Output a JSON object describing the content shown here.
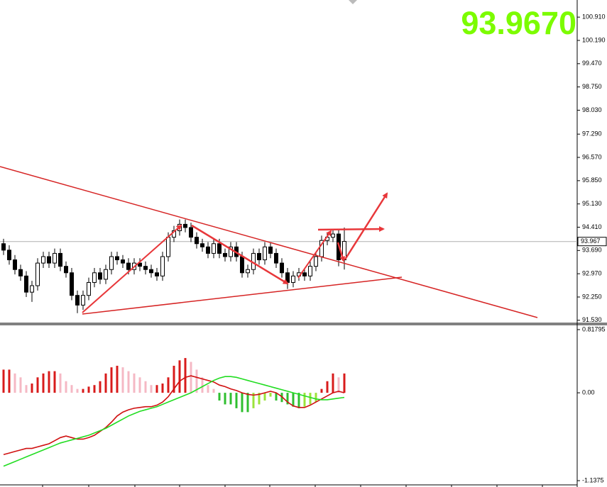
{
  "chart_data": [
    {
      "type": "candlestick",
      "headline": {
        "value": 93.967,
        "label": "93.9670"
      },
      "headline_color": "#7cfc00",
      "current_price": {
        "value": 93.967,
        "label": "93.967"
      },
      "open": [
        93.9,
        93.7,
        93.4,
        93.1,
        92.9,
        92.4,
        92.6,
        93.3,
        93.5,
        93.3,
        93.6,
        93.2,
        93.0,
        92.3,
        92.0,
        92.3,
        92.7,
        93.0,
        92.8,
        93.1,
        93.5,
        93.4,
        93.3,
        93.1,
        93.3,
        93.2,
        93.1,
        93.0,
        92.9,
        93.5,
        94.1,
        94.3,
        94.5,
        94.4,
        94.1,
        93.9,
        93.8,
        93.6,
        93.9,
        93.6,
        93.5,
        93.8,
        93.5,
        93.0,
        93.1,
        93.6,
        93.4,
        93.8,
        93.6,
        93.3,
        93.0,
        92.7,
        92.9,
        93.0,
        92.9,
        93.2,
        93.5,
        94.0,
        94.1,
        94.2,
        93.4
      ],
      "high": [
        94.05,
        93.85,
        93.55,
        93.25,
        93.05,
        92.75,
        93.45,
        93.65,
        93.65,
        93.75,
        93.75,
        93.35,
        93.15,
        92.45,
        92.45,
        92.85,
        93.15,
        93.15,
        93.25,
        93.65,
        93.65,
        93.55,
        93.45,
        93.45,
        93.45,
        93.35,
        93.25,
        93.15,
        93.65,
        94.25,
        94.45,
        94.65,
        94.65,
        94.55,
        94.25,
        94.05,
        93.95,
        94.05,
        94.05,
        93.75,
        93.95,
        93.95,
        93.65,
        93.25,
        93.75,
        93.75,
        93.95,
        93.95,
        93.75,
        93.45,
        93.15,
        93.05,
        93.15,
        93.15,
        93.35,
        93.65,
        94.15,
        94.25,
        94.35,
        94.35,
        94.4
      ],
      "low": [
        93.55,
        93.25,
        92.95,
        92.75,
        92.25,
        92.1,
        92.45,
        93.15,
        93.15,
        93.15,
        93.05,
        92.85,
        92.15,
        91.75,
        91.85,
        92.15,
        92.55,
        92.65,
        92.65,
        92.95,
        93.25,
        93.15,
        92.95,
        92.95,
        93.05,
        92.95,
        92.85,
        92.75,
        92.75,
        93.35,
        93.95,
        94.15,
        94.25,
        93.95,
        93.75,
        93.65,
        93.45,
        93.45,
        93.45,
        93.35,
        93.35,
        93.35,
        92.85,
        92.85,
        92.95,
        93.25,
        93.25,
        93.45,
        93.15,
        92.85,
        92.5,
        92.55,
        92.75,
        92.75,
        92.75,
        93.05,
        93.35,
        93.85,
        93.95,
        93.2,
        93.1
      ],
      "close": [
        93.7,
        93.4,
        93.1,
        92.9,
        92.4,
        92.6,
        93.3,
        93.5,
        93.3,
        93.6,
        93.2,
        93.0,
        92.3,
        92.0,
        92.3,
        92.7,
        93.0,
        92.8,
        93.1,
        93.5,
        93.4,
        93.3,
        93.1,
        93.3,
        93.2,
        93.1,
        93.0,
        92.9,
        93.5,
        94.1,
        94.3,
        94.5,
        94.4,
        94.1,
        93.9,
        93.8,
        93.6,
        93.9,
        93.6,
        93.5,
        93.8,
        93.5,
        93.0,
        93.1,
        93.6,
        93.4,
        93.8,
        93.6,
        93.3,
        93.0,
        92.7,
        92.9,
        93.0,
        92.9,
        93.2,
        93.5,
        94.0,
        94.1,
        94.2,
        93.4,
        93.97
      ],
      "ylim": [
        91.46,
        101.44
      ],
      "yticks": [
        {
          "value": 100.91,
          "label": "100.910"
        },
        {
          "value": 100.19,
          "label": "100.190"
        },
        {
          "value": 99.47,
          "label": "99.470"
        },
        {
          "value": 98.75,
          "label": "98.750"
        },
        {
          "value": 98.03,
          "label": "98.030"
        },
        {
          "value": 97.29,
          "label": "97.290"
        },
        {
          "value": 96.57,
          "label": "96.570"
        },
        {
          "value": 95.85,
          "label": "95.850"
        },
        {
          "value": 95.13,
          "label": "95.130"
        },
        {
          "value": 94.41,
          "label": "94.410"
        },
        {
          "value": 93.69,
          "label": "93.690"
        },
        {
          "value": 92.97,
          "label": "92.970"
        },
        {
          "value": 92.25,
          "label": "92.250"
        },
        {
          "value": 91.53,
          "label": "91.530"
        }
      ]
    },
    {
      "type": "indicator",
      "series": [
        {
          "type": "histogram",
          "color": "#d81b1b",
          "fade_color": "#f5b8c4",
          "neg_color": "#2fbf2f",
          "neg_fade_color": "#9be33a",
          "values": [
            0.3,
            0.3,
            0.25,
            0.2,
            0.1,
            0.12,
            0.2,
            0.25,
            0.28,
            0.28,
            0.25,
            0.15,
            0.1,
            0.05,
            0.05,
            0.08,
            0.1,
            0.15,
            0.25,
            0.33,
            0.35,
            0.33,
            0.28,
            0.25,
            0.2,
            0.15,
            0.1,
            0.1,
            0.12,
            0.2,
            0.35,
            0.42,
            0.45,
            0.4,
            0.3,
            0.2,
            0.1,
            0.05,
            -0.1,
            -0.15,
            -0.15,
            -0.2,
            -0.25,
            -0.25,
            -0.2,
            -0.15,
            -0.1,
            -0.05,
            -0.1,
            -0.12,
            -0.15,
            -0.18,
            -0.2,
            -0.18,
            -0.15,
            -0.12,
            0.05,
            0.15,
            0.25,
            0.2,
            0.25
          ]
        },
        {
          "type": "line",
          "color": "#d01010",
          "values": [
            -0.8,
            -0.78,
            -0.76,
            -0.74,
            -0.72,
            -0.72,
            -0.7,
            -0.68,
            -0.66,
            -0.62,
            -0.58,
            -0.56,
            -0.58,
            -0.6,
            -0.6,
            -0.58,
            -0.55,
            -0.5,
            -0.45,
            -0.38,
            -0.3,
            -0.25,
            -0.22,
            -0.2,
            -0.19,
            -0.18,
            -0.18,
            -0.16,
            -0.12,
            -0.05,
            0.05,
            0.15,
            0.2,
            0.22,
            0.2,
            0.18,
            0.16,
            0.14,
            0.1,
            0.08,
            0.05,
            0.03,
            0.0,
            -0.02,
            -0.03,
            -0.02,
            0.0,
            0.02,
            0.0,
            -0.05,
            -0.12,
            -0.17,
            -0.19,
            -0.19,
            -0.16,
            -0.12,
            -0.08,
            -0.04,
            0.0,
            0.02,
            0.0
          ]
        },
        {
          "type": "line",
          "color": "#22dd22",
          "values": [
            -0.95,
            -0.92,
            -0.89,
            -0.86,
            -0.83,
            -0.8,
            -0.77,
            -0.74,
            -0.71,
            -0.68,
            -0.65,
            -0.63,
            -0.61,
            -0.59,
            -0.57,
            -0.55,
            -0.52,
            -0.49,
            -0.46,
            -0.42,
            -0.38,
            -0.34,
            -0.3,
            -0.27,
            -0.24,
            -0.22,
            -0.2,
            -0.18,
            -0.15,
            -0.12,
            -0.09,
            -0.06,
            -0.03,
            0.0,
            0.04,
            0.08,
            0.12,
            0.16,
            0.19,
            0.21,
            0.21,
            0.2,
            0.18,
            0.16,
            0.14,
            0.12,
            0.1,
            0.08,
            0.06,
            0.04,
            0.02,
            0.0,
            -0.02,
            -0.04,
            -0.06,
            -0.08,
            -0.09,
            -0.09,
            -0.08,
            -0.07,
            -0.06
          ]
        }
      ],
      "ylim": [
        -1.183,
        0.882
      ],
      "yticks": [
        0.81795,
        {
          "value": 0,
          "label": "0.00"
        },
        -1.1375
      ]
    }
  ]
}
